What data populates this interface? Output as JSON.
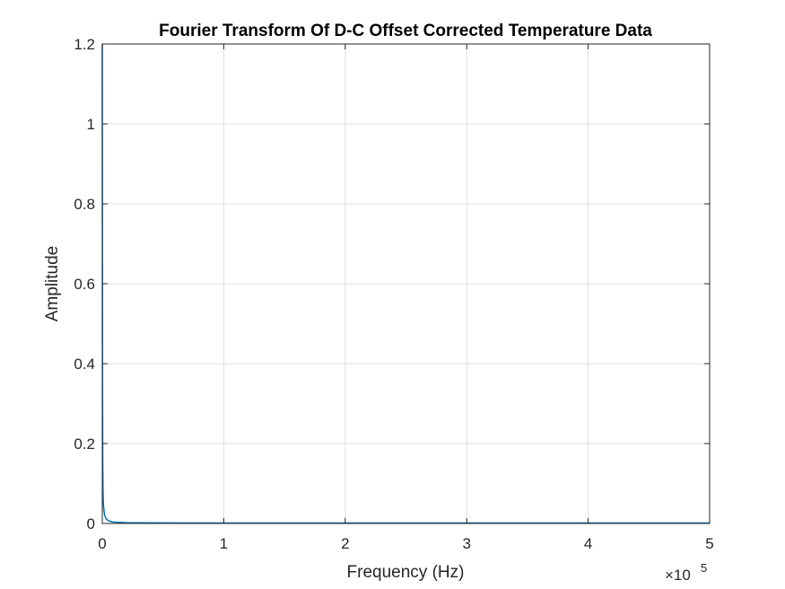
{
  "chart_data": {
    "type": "line",
    "title": "Fourier Transform Of D-C Offset Corrected Temperature Data",
    "xlabel": "Frequency (Hz)",
    "ylabel": "Amplitude",
    "x_exponent_base": "×10",
    "x_exponent_power": "5",
    "xlim": [
      0,
      5
    ],
    "ylim": [
      0,
      1.2
    ],
    "x_ticks": [
      "0",
      "1",
      "2",
      "3",
      "4",
      "5"
    ],
    "y_ticks": [
      "0",
      "0.2",
      "0.4",
      "0.6",
      "0.8",
      "1",
      "1.2"
    ],
    "x_tick_values": [
      0,
      1,
      2,
      3,
      4,
      5
    ],
    "y_tick_values": [
      0,
      0.2,
      0.4,
      0.6,
      0.8,
      1,
      1.2
    ],
    "grid": true,
    "series": [
      {
        "color": "#0072BD",
        "x": [
          0,
          0.002,
          0.004,
          0.006,
          0.008,
          0.01,
          0.015,
          0.02,
          0.03,
          0.05,
          0.08,
          0.12,
          0.2,
          0.5,
          1,
          2,
          3,
          4,
          5
        ],
        "y": [
          1.2,
          0.35,
          0.15,
          0.09,
          0.06,
          0.045,
          0.03,
          0.02,
          0.012,
          0.007,
          0.004,
          0.003,
          0.002,
          0.0015,
          0.001,
          0.001,
          0.001,
          0.001,
          0.001
        ]
      }
    ]
  }
}
